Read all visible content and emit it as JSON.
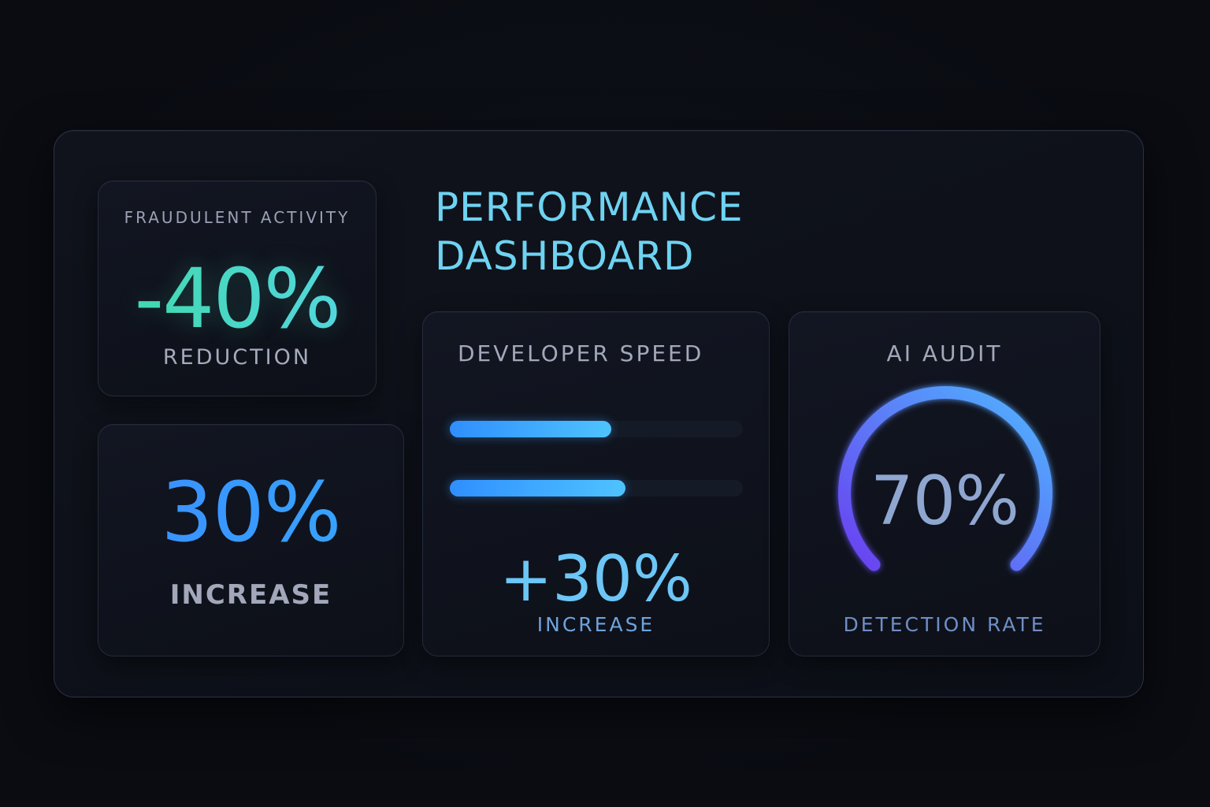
{
  "dashboard": {
    "title_line1": "PERFORMANCE",
    "title_line2": "DASHBOARD"
  },
  "fraud": {
    "label": "FRAUDULENT ACTIVITY",
    "value": "-40%",
    "sub": "REDUCTION"
  },
  "increase": {
    "value": "30%",
    "sub": "INCREASE"
  },
  "developer_speed": {
    "label": "DEVELOPER SPEED",
    "bars": [
      {
        "fill": 0.55
      },
      {
        "fill": 0.6
      }
    ],
    "value": "+30%",
    "sub": "INCREASE"
  },
  "ai_audit": {
    "label": "AI AUDIT",
    "value": "70%",
    "percent": 70,
    "sub": "DETECTION RATE",
    "colors": {
      "start": "#6a3ff0",
      "end": "#4fb6ff"
    }
  }
}
